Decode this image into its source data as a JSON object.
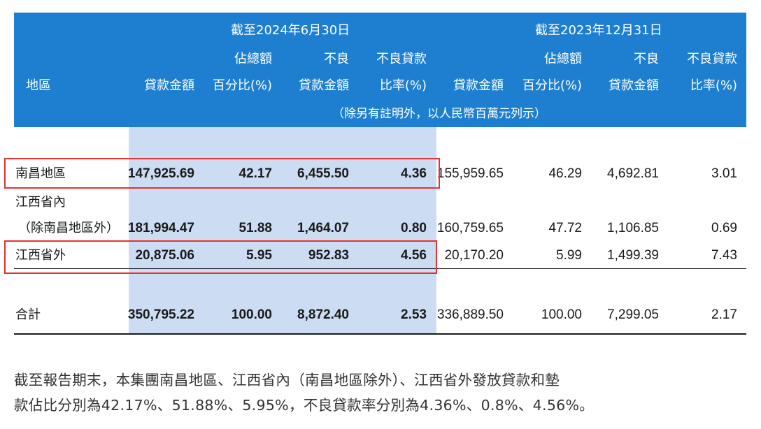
{
  "header": {
    "period1": "截至2024年6月30日",
    "period2": "截至2023年12月31日",
    "region": "地區",
    "loan_amount": "貸款金額",
    "share_top": "佔總額",
    "share_bottom": "百分比(%)",
    "npl_top": "不良",
    "npl_bottom": "貸款金額",
    "npl_ratio_top": "不良貸款",
    "npl_ratio_bottom": "比率(%)",
    "unit_note": "（除另有註明外，以人民幣百萬元列示）"
  },
  "rows": [
    {
      "region": "南昌地區",
      "values": [
        "147,925.69",
        "42.17",
        "6,455.50",
        "4.36",
        "155,959.65",
        "46.29",
        "4,692.81",
        "3.01"
      ]
    },
    {
      "region_line1": "江西省內",
      "region_line2": "（除南昌地區外）",
      "values": [
        "181,994.47",
        "51.88",
        "1,464.07",
        "0.80",
        "160,759.65",
        "47.72",
        "1,106.85",
        "0.69"
      ]
    },
    {
      "region": "江西省外",
      "values": [
        "20,875.06",
        "5.95",
        "952.83",
        "4.56",
        "20,170.20",
        "5.99",
        "1,499.39",
        "7.43"
      ]
    },
    {
      "region": "合計",
      "values": [
        "350,795.22",
        "100.00",
        "8,872.40",
        "2.53",
        "336,889.50",
        "100.00",
        "7,299.05",
        "2.17"
      ]
    }
  ],
  "note": {
    "line1": "截至報告期末，本集團南昌地區、江西省內（南昌地區除外）、江西省外發放貸款和墊",
    "line2": "款佔比分別為42.17%、51.88%、5.95%，不良貸款率分別為4.36%、0.8%、4.56%。"
  },
  "colors": {
    "header_bg": "#1e7fd0",
    "shade": "#ccdcf2",
    "highlight": "#e8312f"
  }
}
